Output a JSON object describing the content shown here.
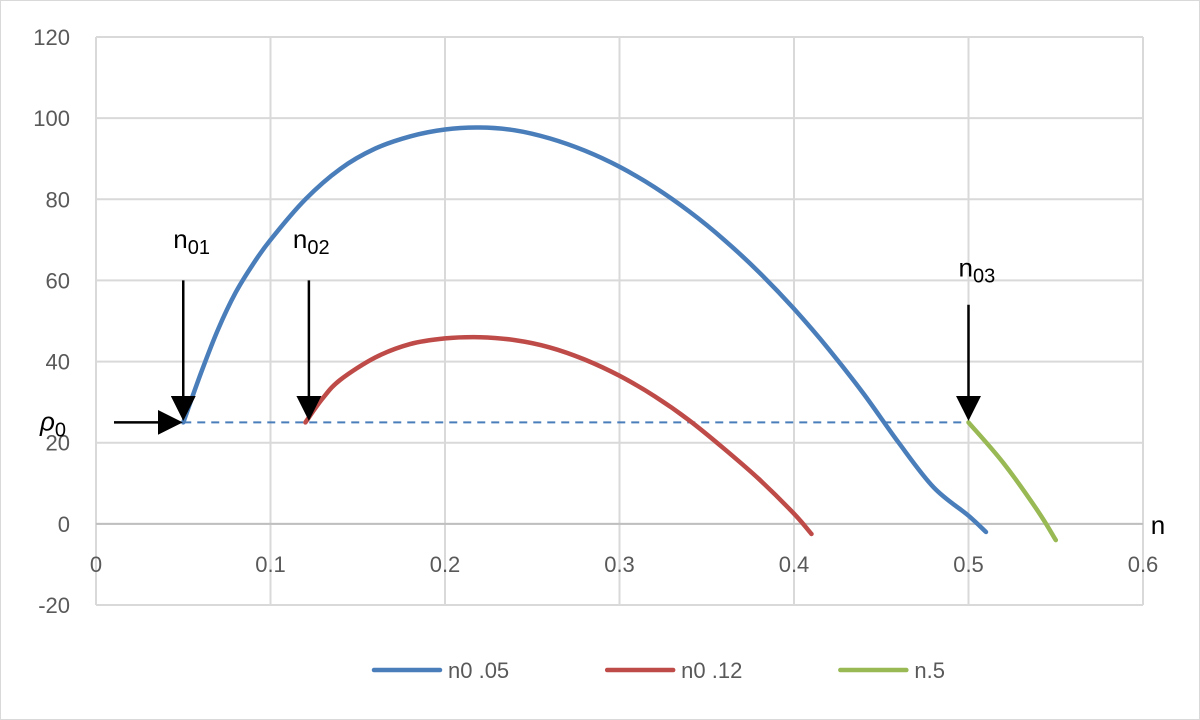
{
  "chart_data": {
    "type": "line",
    "xlabel": "n",
    "ylabel": "",
    "xlim": [
      0,
      0.6
    ],
    "ylim": [
      -20,
      120
    ],
    "x_ticks": [
      "0",
      "0.1",
      "0.2",
      "0.3",
      "0.4",
      "0.5",
      "0.6"
    ],
    "y_ticks": [
      "-20",
      "0",
      "20",
      "40",
      "60",
      "80",
      "100",
      "120"
    ],
    "grid": true,
    "legend_position": "bottom",
    "series": [
      {
        "name": "n0 .05",
        "color": "#4a7ebb",
        "points": [
          [
            0.05,
            25
          ],
          [
            0.06,
            37
          ],
          [
            0.07,
            48
          ],
          [
            0.08,
            57
          ],
          [
            0.09,
            64
          ],
          [
            0.1,
            70
          ],
          [
            0.12,
            80
          ],
          [
            0.14,
            87.5
          ],
          [
            0.16,
            92.5
          ],
          [
            0.18,
            95.5
          ],
          [
            0.2,
            97.2
          ],
          [
            0.22,
            97.7
          ],
          [
            0.24,
            97
          ],
          [
            0.26,
            95
          ],
          [
            0.28,
            92
          ],
          [
            0.3,
            88
          ],
          [
            0.32,
            83
          ],
          [
            0.34,
            77
          ],
          [
            0.36,
            70
          ],
          [
            0.38,
            62
          ],
          [
            0.4,
            53
          ],
          [
            0.42,
            43
          ],
          [
            0.44,
            32
          ],
          [
            0.46,
            20
          ],
          [
            0.48,
            9
          ],
          [
            0.5,
            2
          ],
          [
            0.51,
            -2
          ]
        ]
      },
      {
        "name": "n0 .12",
        "color": "#be4b48",
        "points": [
          [
            0.12,
            25
          ],
          [
            0.13,
            31
          ],
          [
            0.14,
            35.5
          ],
          [
            0.16,
            41
          ],
          [
            0.18,
            44.3
          ],
          [
            0.2,
            45.7
          ],
          [
            0.22,
            46
          ],
          [
            0.24,
            45.3
          ],
          [
            0.26,
            43.5
          ],
          [
            0.28,
            40.5
          ],
          [
            0.3,
            36.5
          ],
          [
            0.32,
            31.5
          ],
          [
            0.34,
            25.5
          ],
          [
            0.36,
            18.5
          ],
          [
            0.38,
            11
          ],
          [
            0.4,
            2.5
          ],
          [
            0.41,
            -2.5
          ]
        ]
      },
      {
        "name": "n.5",
        "color": "#98b954",
        "points": [
          [
            0.5,
            25
          ],
          [
            0.52,
            15
          ],
          [
            0.54,
            3
          ],
          [
            0.55,
            -4
          ]
        ]
      }
    ],
    "reference_line": {
      "y": 25,
      "x": [
        0.05,
        0.5
      ],
      "style": "dashed",
      "color": "#4a7ebb"
    },
    "annotations": [
      {
        "label": "n",
        "sub": "01",
        "x": 0.05,
        "y": 25
      },
      {
        "label": "n",
        "sub": "02",
        "x": 0.122,
        "y": 25
      },
      {
        "label": "n",
        "sub": "03",
        "x": 0.5,
        "y": 25
      },
      {
        "label": "ρ",
        "sub": "0",
        "x": 0.05,
        "y": 25
      }
    ]
  }
}
